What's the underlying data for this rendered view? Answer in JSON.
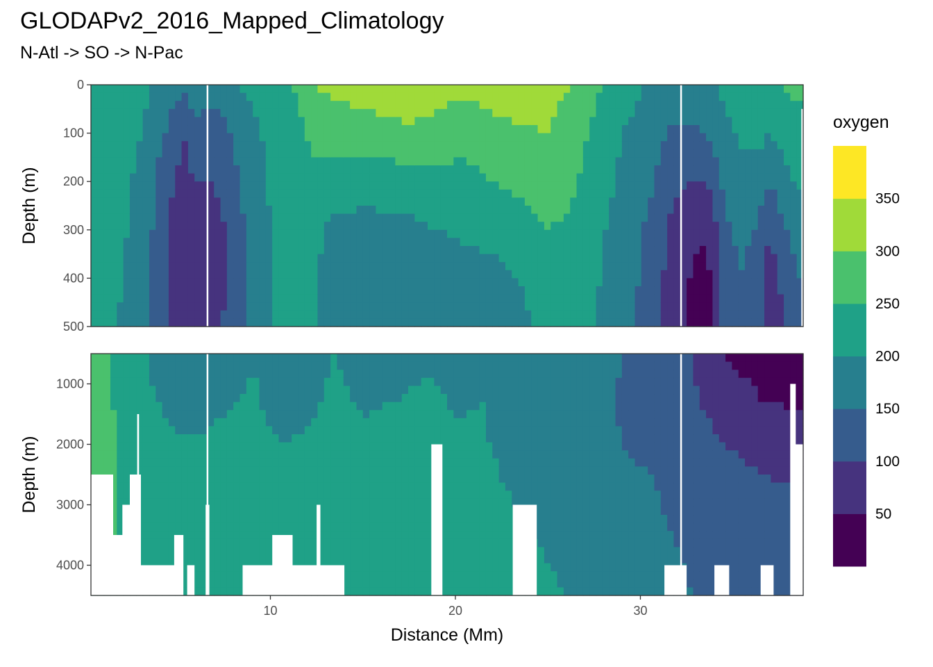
{
  "title": "GLODAPv2_2016_Mapped_Climatology",
  "subtitle": "N-Atl -> SO -> N-Pac",
  "chart_data": {
    "type": "heatmap",
    "variable": "oxygen",
    "xlabel": "Distance (Mm)",
    "ylabel": "Depth (m)",
    "x_ticks": [
      10,
      20,
      30
    ],
    "xlim": [
      0.3,
      38.8
    ],
    "section_boundaries_Mm": [
      6.6,
      32.2
    ],
    "panels": [
      {
        "name": "upper",
        "ylim": [
          0,
          500
        ],
        "y_ticks": [
          0,
          100,
          200,
          300,
          400,
          500
        ]
      },
      {
        "name": "lower",
        "ylim": [
          500,
          4500
        ],
        "y_ticks": [
          1000,
          2000,
          3000,
          4000
        ]
      }
    ],
    "legend": {
      "title": "oxygen",
      "position": "right",
      "bins": [
        0,
        50,
        100,
        150,
        200,
        250,
        300,
        350,
        400
      ],
      "tick_labels": [
        "50",
        "100",
        "150",
        "200",
        "250",
        "300",
        "350"
      ],
      "colors": [
        "#440154",
        "#46337e",
        "#365c8d",
        "#277f8e",
        "#1fa187",
        "#4ac16d",
        "#a0da39",
        "#fde725"
      ]
    },
    "profiles_upper": [
      [
        0.3,
        [
          250,
          250,
          250,
          240,
          230,
          210
        ]
      ],
      [
        1.5,
        [
          240,
          230,
          220,
          215,
          210,
          205
        ]
      ],
      [
        3.0,
        [
          215,
          200,
          190,
          185,
          180,
          175
        ]
      ],
      [
        4.5,
        [
          180,
          140,
          110,
          100,
          95,
          95
        ]
      ],
      [
        5.3,
        [
          160,
          100,
          80,
          75,
          70,
          45
        ]
      ],
      [
        6.0,
        [
          175,
          140,
          100,
          90,
          95,
          95
        ]
      ],
      [
        6.9,
        [
          165,
          125,
          100,
          85,
          80,
          90
        ]
      ],
      [
        7.6,
        [
          175,
          140,
          115,
          100,
          100,
          105
        ]
      ],
      [
        8.6,
        [
          205,
          180,
          160,
          150,
          145,
          150
        ]
      ],
      [
        10.0,
        [
          220,
          210,
          205,
          200,
          200,
          200
        ]
      ],
      [
        11.0,
        [
          240,
          215,
          210,
          205,
          205,
          205
        ]
      ],
      [
        12.3,
        [
          300,
          265,
          230,
          210,
          205,
          205
        ]
      ],
      [
        13.5,
        [
          310,
          275,
          220,
          190,
          180,
          175
        ]
      ],
      [
        15.3,
        [
          330,
          275,
          225,
          180,
          170,
          165
        ]
      ],
      [
        17.5,
        [
          355,
          285,
          230,
          185,
          170,
          165
        ]
      ],
      [
        19.0,
        [
          320,
          280,
          240,
          200,
          175,
          165
        ]
      ],
      [
        20.5,
        [
          310,
          270,
          230,
          205,
          190,
          180
        ]
      ],
      [
        22.0,
        [
          315,
          290,
          250,
          210,
          190,
          185
        ]
      ],
      [
        23.5,
        [
          320,
          295,
          265,
          225,
          200,
          190
        ]
      ],
      [
        25.0,
        [
          315,
          300,
          280,
          250,
          230,
          215
        ]
      ],
      [
        26.2,
        [
          300,
          280,
          260,
          240,
          230,
          225
        ]
      ],
      [
        27.5,
        [
          260,
          240,
          225,
          210,
          205,
          200
        ]
      ],
      [
        29.0,
        [
          220,
          200,
          190,
          185,
          180,
          175
        ]
      ],
      [
        30.5,
        [
          195,
          180,
          160,
          140,
          130,
          125
        ]
      ],
      [
        31.6,
        [
          175,
          145,
          115,
          95,
          85,
          80
        ]
      ],
      [
        32.8,
        [
          180,
          140,
          100,
          60,
          45,
          40
        ]
      ],
      [
        33.6,
        [
          190,
          150,
          100,
          55,
          35,
          30
        ]
      ],
      [
        34.6,
        [
          210,
          190,
          165,
          140,
          120,
          115
        ]
      ],
      [
        35.4,
        [
          230,
          205,
          185,
          165,
          150,
          145
        ]
      ],
      [
        36.3,
        [
          245,
          215,
          180,
          145,
          120,
          115
        ]
      ],
      [
        37.0,
        [
          240,
          200,
          150,
          100,
          80,
          75
        ]
      ],
      [
        37.7,
        [
          255,
          220,
          180,
          140,
          110,
          95
        ]
      ],
      [
        38.5,
        [
          260,
          235,
          205,
          175,
          150,
          140
        ]
      ]
    ],
    "profiles_lower": [
      [
        0.3,
        [
          270,
          260,
          255,
          250,
          245,
          240
        ]
      ],
      [
        1.5,
        [
          245,
          250,
          255,
          255,
          250,
          245
        ]
      ],
      [
        3.0,
        [
          210,
          215,
          225,
          235,
          240,
          240
        ]
      ],
      [
        4.5,
        [
          160,
          190,
          210,
          220,
          225,
          230
        ]
      ],
      [
        6.0,
        [
          150,
          185,
          205,
          215,
          225,
          235
        ]
      ],
      [
        7.5,
        [
          160,
          195,
          215,
          225,
          230,
          235
        ]
      ],
      [
        9.0,
        [
          195,
          210,
          220,
          230,
          240,
          245
        ]
      ],
      [
        10.5,
        [
          190,
          175,
          205,
          220,
          230,
          240
        ]
      ],
      [
        12.0,
        [
          185,
          190,
          210,
          220,
          230,
          240
        ]
      ],
      [
        13.5,
        [
          200,
          210,
          215,
          220,
          225,
          230
        ]
      ],
      [
        15.0,
        [
          175,
          195,
          210,
          215,
          220,
          225
        ]
      ],
      [
        16.5,
        [
          170,
          200,
          215,
          220,
          220,
          225
        ]
      ],
      [
        18.5,
        [
          195,
          210,
          220,
          220,
          215,
          215
        ]
      ],
      [
        20.0,
        [
          180,
          195,
          210,
          215,
          215,
          215
        ]
      ],
      [
        21.5,
        [
          195,
          200,
          205,
          210,
          210,
          210
        ]
      ],
      [
        23.0,
        [
          190,
          175,
          190,
          200,
          205,
          205
        ]
      ],
      [
        24.5,
        [
          175,
          170,
          185,
          195,
          200,
          205
        ]
      ],
      [
        26.0,
        [
          180,
          175,
          180,
          190,
          195,
          200
        ]
      ],
      [
        27.5,
        [
          170,
          165,
          170,
          185,
          195,
          200
        ]
      ],
      [
        29.0,
        [
          150,
          145,
          150,
          170,
          185,
          195
        ]
      ],
      [
        30.0,
        [
          140,
          140,
          145,
          160,
          175,
          180
        ]
      ],
      [
        31.0,
        [
          150,
          145,
          145,
          150,
          160,
          170
        ]
      ],
      [
        32.0,
        [
          145,
          130,
          125,
          135,
          150,
          160
        ]
      ],
      [
        33.5,
        [
          60,
          95,
          115,
          125,
          135,
          140
        ]
      ],
      [
        35.0,
        [
          40,
          70,
          100,
          115,
          125,
          130
        ]
      ],
      [
        36.5,
        [
          40,
          50,
          90,
          110,
          120,
          125
        ]
      ],
      [
        38.5,
        [
          40,
          45,
          85,
          105,
          115,
          120
        ]
      ]
    ],
    "bottom_depth_upper_Mm_m": [
      [
        38.7,
        50
      ]
    ],
    "bottom_depth_lower": [
      [
        0.3,
        2500
      ],
      [
        1.5,
        2500
      ],
      [
        1.5,
        3500
      ],
      [
        2.0,
        3500
      ],
      [
        2.0,
        3000
      ],
      [
        2.4,
        3000
      ],
      [
        2.4,
        2500
      ],
      [
        2.8,
        2500
      ],
      [
        2.8,
        1500
      ],
      [
        2.9,
        1500
      ],
      [
        2.9,
        2500
      ],
      [
        3.0,
        2500
      ],
      [
        3.0,
        4000
      ],
      [
        4.8,
        4000
      ],
      [
        4.8,
        3500
      ],
      [
        5.3,
        3500
      ],
      [
        5.3,
        4500
      ],
      [
        5.5,
        4500
      ],
      [
        5.5,
        4000
      ],
      [
        5.9,
        4000
      ],
      [
        5.9,
        4500
      ],
      [
        6.5,
        4500
      ],
      [
        6.5,
        3000
      ],
      [
        6.7,
        3000
      ],
      [
        6.7,
        4500
      ],
      [
        8.5,
        4500
      ],
      [
        8.5,
        4000
      ],
      [
        10.1,
        4000
      ],
      [
        10.1,
        3500
      ],
      [
        11.2,
        3500
      ],
      [
        11.2,
        4000
      ],
      [
        12.5,
        4000
      ],
      [
        12.5,
        3000
      ],
      [
        12.7,
        3000
      ],
      [
        12.7,
        4000
      ],
      [
        14.0,
        4000
      ],
      [
        14.0,
        4500
      ],
      [
        18.7,
        4500
      ],
      [
        18.7,
        2000
      ],
      [
        19.3,
        2000
      ],
      [
        19.3,
        4500
      ],
      [
        23.1,
        4500
      ],
      [
        23.1,
        3000
      ],
      [
        24.4,
        3000
      ],
      [
        24.4,
        4500
      ],
      [
        31.3,
        4500
      ],
      [
        31.3,
        4000
      ],
      [
        32.5,
        4000
      ],
      [
        32.5,
        4500
      ],
      [
        34.0,
        4500
      ],
      [
        34.0,
        4000
      ],
      [
        34.8,
        4000
      ],
      [
        34.8,
        4500
      ],
      [
        36.5,
        4500
      ],
      [
        36.5,
        4000
      ],
      [
        37.2,
        4000
      ],
      [
        37.2,
        4500
      ],
      [
        38.1,
        4500
      ],
      [
        38.1,
        1000
      ],
      [
        38.4,
        1000
      ],
      [
        38.4,
        2000
      ],
      [
        38.8,
        2000
      ],
      [
        38.8,
        4500
      ]
    ]
  }
}
